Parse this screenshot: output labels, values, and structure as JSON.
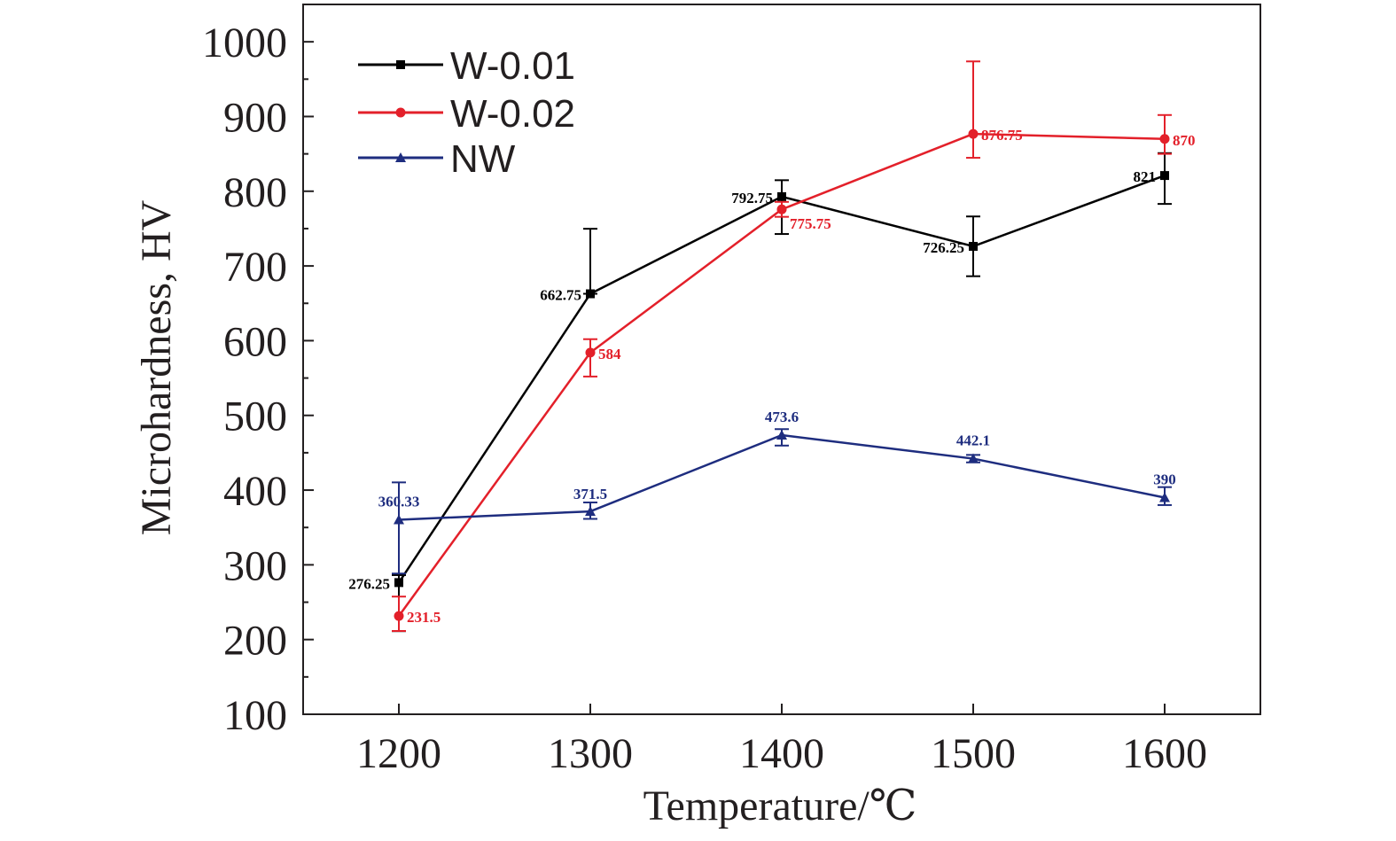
{
  "chart_data": {
    "type": "line",
    "title": "",
    "xlabel": "Temperature/℃",
    "ylabel": "Microhardness, HV",
    "x": [
      1200,
      1300,
      1400,
      1500,
      1600
    ],
    "x_ticks": [
      "1200",
      "1300",
      "1400",
      "1500",
      "1600"
    ],
    "xlim": [
      1150,
      1650
    ],
    "ylim": [
      100,
      1050
    ],
    "y_ticks": [
      "100",
      "200",
      "300",
      "400",
      "500",
      "600",
      "700",
      "800",
      "900",
      "1000"
    ],
    "grid": false,
    "legend_position": "top-left",
    "series": [
      {
        "name": "W-0.01",
        "color": "#000000",
        "marker": "square",
        "values": [
          276.25,
          662.75,
          792.75,
          726.25,
          821
        ],
        "error_plus": [
          10,
          87,
          22,
          40,
          30
        ],
        "error_minus": [
          65,
          0,
          50,
          40,
          38
        ],
        "labels": [
          "276.25",
          "662.75",
          "792.75",
          "726.25",
          "821"
        ]
      },
      {
        "name": "W-0.02",
        "color": "#e3202a",
        "marker": "circle",
        "values": [
          231.5,
          584,
          775.75,
          876.75,
          870
        ],
        "error_plus": [
          26,
          18,
          10,
          97,
          32
        ],
        "error_minus": [
          20,
          32,
          10,
          32,
          20
        ],
        "labels": [
          "231.5",
          "584",
          "775.75",
          "876.75",
          "870"
        ]
      },
      {
        "name": "NW",
        "color": "#1e2d7f",
        "marker": "triangle",
        "values": [
          360.33,
          371.5,
          473.6,
          442.1,
          390
        ],
        "error_plus": [
          50,
          12,
          8,
          5,
          14
        ],
        "error_minus": [
          72,
          10,
          14,
          5,
          10
        ],
        "labels": [
          "360.33",
          "371.5",
          "473.6",
          "442.1",
          "390"
        ]
      }
    ]
  }
}
